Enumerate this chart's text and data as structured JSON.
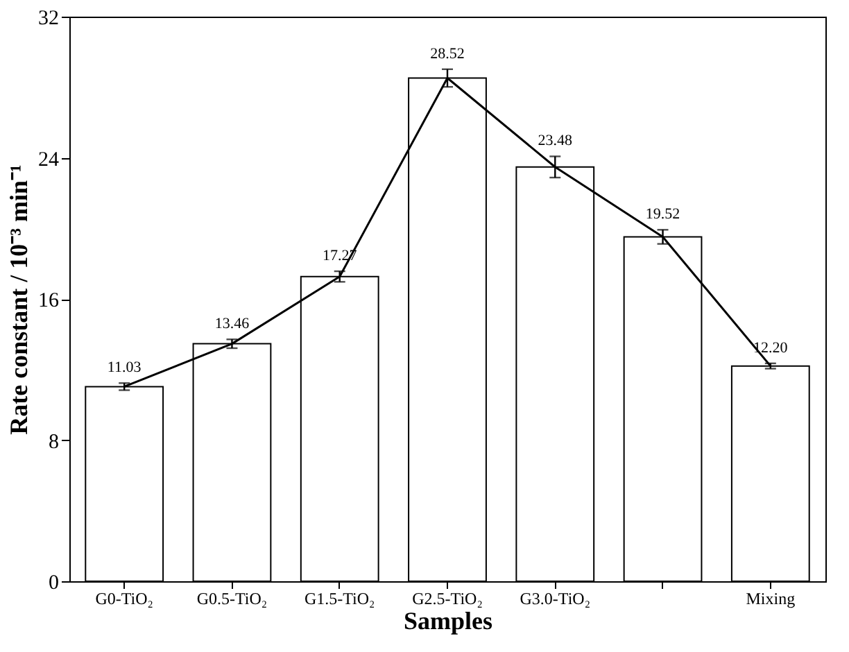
{
  "chart_data": {
    "type": "bar",
    "xlabel": "Samples",
    "ylabel": "Rate constant / 10⁻³ min⁻¹",
    "categories": [
      "G0-TiO₂",
      "G0.5-TiO₂",
      "G1.5-TiO₂",
      "G2.5-TiO₂",
      "G3.0-TiO₂",
      null,
      "Mixing"
    ],
    "series": [
      {
        "color": "#ffffff",
        "values": [
          11.03,
          13.46,
          17.27,
          28.52,
          23.48,
          19.52,
          12.2
        ],
        "value_labels": [
          "11.03",
          "13.46",
          "17.27",
          "28.52",
          "23.48",
          "19.52",
          "12.20"
        ]
      },
      {
        "type": "line",
        "color": "#000000",
        "values": [
          11.03,
          13.46,
          17.27,
          28.52,
          23.48,
          19.52,
          12.2
        ],
        "errors": [
          0.2,
          0.25,
          0.3,
          0.5,
          0.6,
          0.4,
          0.15
        ]
      }
    ],
    "ylim": [
      0,
      32
    ],
    "yticks": [
      0,
      8,
      16,
      24,
      32
    ],
    "grid": false,
    "marker": "none",
    "line_style": "solid"
  }
}
